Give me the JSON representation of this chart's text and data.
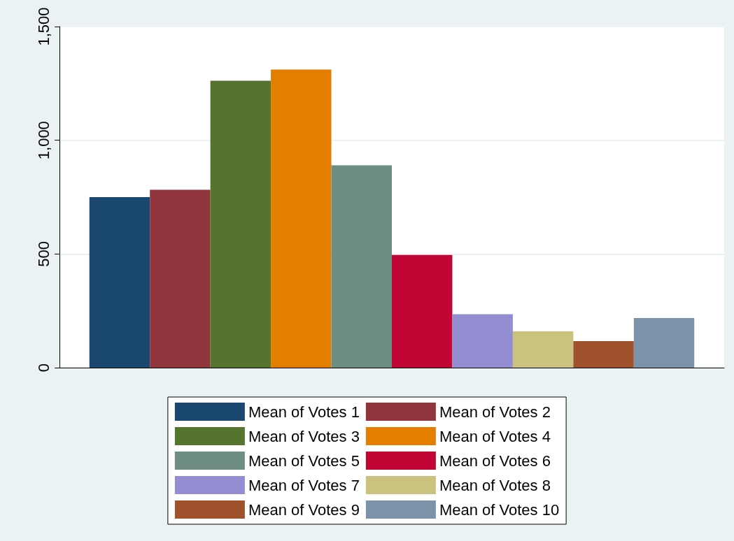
{
  "chart_data": {
    "type": "bar",
    "categories": [
      null
    ],
    "series": [
      {
        "name": "Mean of Votes 1",
        "color": "#1a476f",
        "values": [
          750
        ]
      },
      {
        "name": "Mean of Votes 2",
        "color": "#90353b",
        "values": [
          782
        ]
      },
      {
        "name": "Mean of Votes 3",
        "color": "#55752f",
        "values": [
          1262
        ]
      },
      {
        "name": "Mean of Votes 4",
        "color": "#e37e00",
        "values": [
          1311
        ]
      },
      {
        "name": "Mean of Votes 5",
        "color": "#6e8e84",
        "values": [
          890
        ]
      },
      {
        "name": "Mean of Votes 6",
        "color": "#c10534",
        "values": [
          496
        ]
      },
      {
        "name": "Mean of Votes 7",
        "color": "#938dd2",
        "values": [
          235
        ]
      },
      {
        "name": "Mean of Votes 8",
        "color": "#cac27e",
        "values": [
          160
        ]
      },
      {
        "name": "Mean of Votes 9",
        "color": "#a0522d",
        "values": [
          117
        ]
      },
      {
        "name": "Mean of Votes 10",
        "color": "#7b92a8",
        "values": [
          218
        ]
      }
    ],
    "ylim": [
      0,
      1500
    ],
    "yticks": [
      0,
      500,
      {
        "value": 1000,
        "label": "1,000"
      },
      {
        "value": 1500,
        "label": "1,500"
      }
    ],
    "grid": "y",
    "legend": "bottom"
  }
}
